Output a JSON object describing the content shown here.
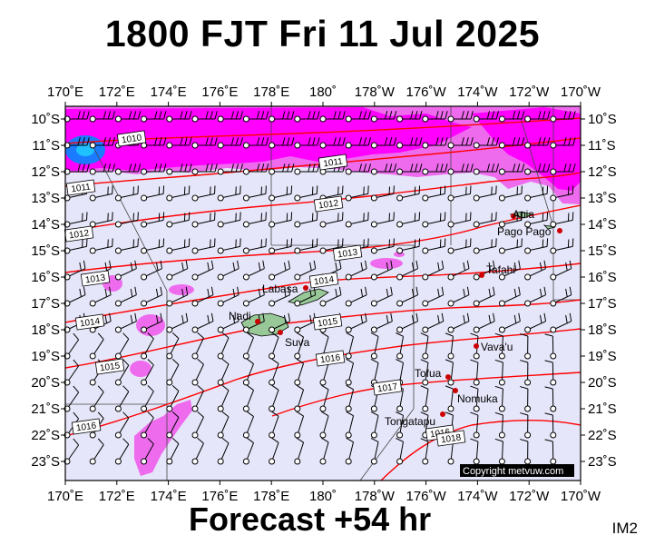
{
  "title": "1800 FJT Fri 11 Jul 2025",
  "footer": "Forecast +54 hr",
  "code": "IM2",
  "copyright": "Copyright metvuw.com",
  "axes": {
    "top_lon": [
      "170˚E",
      "172˚E",
      "174˚E",
      "176˚E",
      "178˚E",
      "180˚",
      "178˚W",
      "176˚W",
      "174˚W",
      "172˚W",
      "170˚W"
    ],
    "bottom_lon": [
      "170˚E",
      "172˚E",
      "174˚E",
      "176˚E",
      "178˚E",
      "180˚",
      "178˚W",
      "176˚W",
      "174˚W",
      "172˚W",
      "170˚W"
    ],
    "lat": [
      "10˚S",
      "11˚S",
      "12˚S",
      "13˚S",
      "14˚S",
      "15˚S",
      "16˚S",
      "17˚S",
      "18˚S",
      "19˚S",
      "20˚S",
      "21˚S",
      "22˚S",
      "23˚S"
    ]
  },
  "isobars": [
    "1010",
    "1011",
    "1011",
    "1012",
    "1012",
    "1013",
    "1013",
    "1014",
    "1014",
    "1015",
    "1015",
    "1016",
    "1016",
    "1017",
    "1016",
    "1018"
  ],
  "places": [
    "Apia",
    "Pago Pago",
    "Tafahi",
    "Labasa",
    "Nadi",
    "Suva",
    "Vava'u",
    "Tofua",
    "Nomuka",
    "Tongatapu"
  ],
  "colors": {
    "background": "#e6e6fa",
    "rain_light": "#ee6bee",
    "rain_heavy": "#ff00ff",
    "rain_core": "#1b7bff",
    "isobar": "#ff0000",
    "land": "#98c898",
    "place_dot": "#cc0000"
  },
  "legend": "none",
  "grid": true
}
